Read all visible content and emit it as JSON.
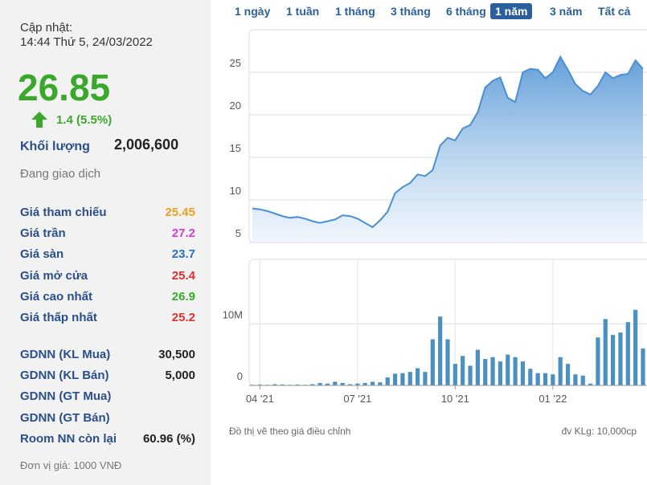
{
  "panel": {
    "update_label": "Cập nhật:",
    "update_time": "14:44 Thứ 5, 24/03/2022",
    "price": "26.85",
    "change": "1.4 (5.5%)",
    "volume_label": "Khối lượng",
    "volume": "2,006,600",
    "status": "Đang giao dịch",
    "price_rows": [
      {
        "label": "Giá tham chiếu",
        "value": "25.45",
        "color": "#f0a020"
      },
      {
        "label": "Giá trần",
        "value": "27.2",
        "color": "#d33fd3"
      },
      {
        "label": "Giá sàn",
        "value": "23.7",
        "color": "#2a6fc0"
      },
      {
        "label": "Giá mở cửa",
        "value": "25.4",
        "color": "#e03030"
      },
      {
        "label": "Giá cao nhất",
        "value": "26.9",
        "color": "#3aa82a"
      },
      {
        "label": "Giá thấp nhất",
        "value": "25.2",
        "color": "#e03030"
      }
    ],
    "foreign_rows": [
      {
        "label": "GDNN (KL Mua)",
        "value": "30,500"
      },
      {
        "label": "GDNN (KL Bán)",
        "value": "5,000"
      },
      {
        "label": "GDNN (GT Mua)"
      },
      {
        "label": "GDNN (GT Bán)"
      },
      {
        "label": "Room NN còn lại",
        "value": "60.96 (%)"
      }
    ],
    "footnote": "Đơn vị giá: 1000 VNĐ"
  },
  "tabs": {
    "items": [
      "1 ngày",
      "1 tuần",
      "1 tháng",
      "3 tháng",
      "6 tháng",
      "1 năm",
      "3 năm",
      "Tất cả"
    ],
    "active": 5
  },
  "notes": {
    "left": "Đồ thị vẽ theo giá điều chỉnh",
    "right": "đv KLg: 10,000cp"
  },
  "chart_data": [
    {
      "type": "area",
      "color": "#4a8fd0",
      "values": [
        9.0,
        8.9,
        8.7,
        8.4,
        8.1,
        7.9,
        8.0,
        7.8,
        7.5,
        7.3,
        7.5,
        7.7,
        8.2,
        8.1,
        7.8,
        7.3,
        6.8,
        7.6,
        8.6,
        10.8,
        11.5,
        12.0,
        13.0,
        12.8,
        13.5,
        16.4,
        17.3,
        17.0,
        18.4,
        18.8,
        20.3,
        23.2,
        24.0,
        24.4,
        22.0,
        21.5,
        25.0,
        25.4,
        25.3,
        24.3,
        25.0,
        26.8,
        25.3,
        23.6,
        22.8,
        22.4,
        23.4,
        25.0,
        24.3,
        24.7,
        24.8,
        26.4,
        25.4
      ],
      "ylim": [
        5,
        30
      ],
      "yticks": [
        5,
        10,
        15,
        20,
        25
      ],
      "grid": true
    },
    {
      "type": "bar",
      "color": "#4a90c0",
      "categories": [
        null,
        "04 '21",
        null,
        null,
        null,
        null,
        null,
        null,
        null,
        null,
        null,
        null,
        null,
        null,
        "07 '21",
        null,
        null,
        null,
        null,
        null,
        null,
        null,
        null,
        null,
        null,
        null,
        null,
        "10 '21",
        null,
        null,
        null,
        null,
        null,
        null,
        null,
        null,
        null,
        null,
        null,
        null,
        "01 '22",
        null,
        null,
        null,
        null,
        null,
        null,
        null,
        null,
        null,
        null,
        null,
        null
      ],
      "values": [
        100000,
        150000,
        100000,
        200000,
        150000,
        100000,
        150000,
        100000,
        200000,
        400000,
        300000,
        600000,
        400000,
        200000,
        300000,
        400000,
        600000,
        500000,
        1300000,
        1900000,
        2000000,
        2200000,
        2800000,
        2200000,
        7500000,
        11200000,
        7500000,
        3500000,
        4800000,
        3200000,
        5800000,
        4300000,
        4600000,
        3900000,
        5000000,
        4600000,
        3900000,
        2700000,
        2000000,
        2000000,
        1800000,
        4600000,
        3500000,
        1800000,
        1600000,
        300000,
        7800000,
        10800000,
        8200000,
        8600000,
        10300000,
        12300000,
        6000000
      ],
      "ylim": [
        0,
        20500000
      ],
      "yticks": [
        0,
        {
          "value": 10000000,
          "label": "10M"
        }
      ],
      "grid": true
    }
  ]
}
